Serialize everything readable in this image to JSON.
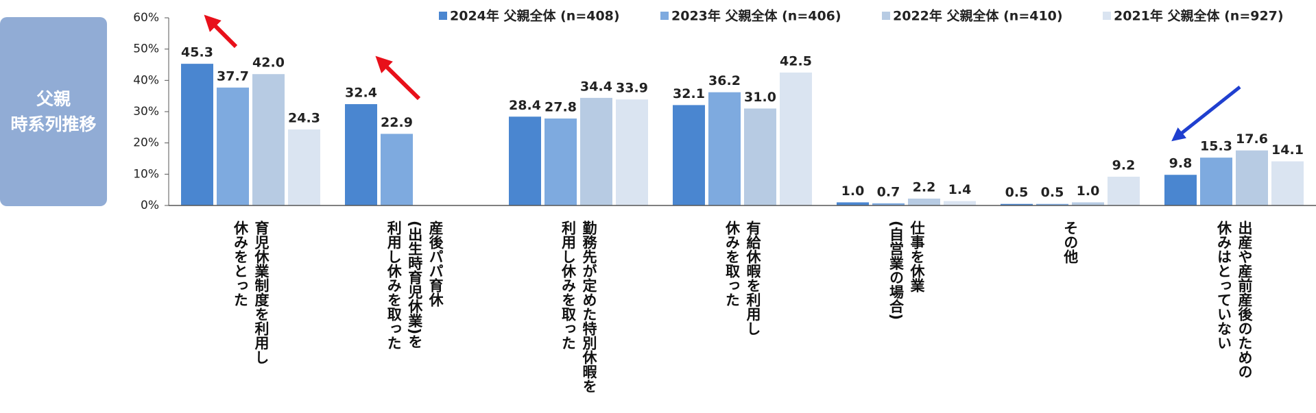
{
  "side_label": "父親\n時系列推移",
  "chart_data": {
    "type": "bar",
    "categories": [
      "育児休業制度を利用し\n休みをとった",
      "産後パパ育休\n(出生時育児休業)を\n利用し休みを取った",
      "勤務先が定めた特別休暇を\n利用し休みを取った",
      "有給休暇を利用し\n休みを取った",
      "仕事を休業\n(自営業の場合)",
      "その他",
      "出産や産前産後のための\n休みはとっていない"
    ],
    "series": [
      {
        "name": "2024年 父親全体 (n=408)",
        "color": "#4a86d0",
        "values": [
          45.3,
          32.4,
          28.4,
          32.1,
          1.0,
          0.5,
          9.8
        ],
        "value_labels": [
          "45.3",
          "32.4",
          "28.4",
          "32.1",
          "1.0",
          "0.5",
          "9.8"
        ]
      },
      {
        "name": "2023年 父親全体 (n=406)",
        "color": "#7eaadf",
        "values": [
          37.7,
          22.9,
          27.8,
          36.2,
          0.7,
          0.5,
          15.3
        ],
        "value_labels": [
          "37.7",
          "22.9",
          "27.8",
          "36.2",
          "0.7",
          "0.5",
          "15.3"
        ]
      },
      {
        "name": "2022年 父親全体 (n=410)",
        "color": "#b7cbe3",
        "values": [
          42.0,
          null,
          34.4,
          31.0,
          2.2,
          1.0,
          17.6
        ],
        "value_labels": [
          "42.0",
          null,
          "34.4",
          "31.0",
          "2.2",
          "1.0",
          "17.6"
        ]
      },
      {
        "name": "2021年 父親全体 (n=927)",
        "color": "#dae4f1",
        "values": [
          24.3,
          null,
          33.9,
          42.5,
          1.4,
          9.2,
          14.1
        ],
        "value_labels": [
          "24.3",
          null,
          "33.9",
          "42.5",
          "1.4",
          "9.2",
          "14.1"
        ]
      }
    ],
    "ylim": [
      0,
      60
    ],
    "yticks": [
      {
        "value": 0,
        "label": "0%"
      },
      {
        "value": 10,
        "label": "10%"
      },
      {
        "value": 20,
        "label": "20%"
      },
      {
        "value": 30,
        "label": "30%"
      },
      {
        "value": 40,
        "label": "40%"
      },
      {
        "value": 50,
        "label": "50%"
      },
      {
        "value": 60,
        "label": "60%"
      }
    ],
    "legend": "top"
  }
}
